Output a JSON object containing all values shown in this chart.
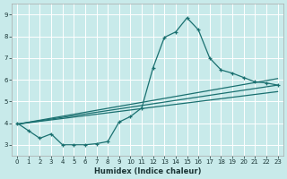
{
  "xlabel": "Humidex (Indice chaleur)",
  "xlim": [
    -0.5,
    23.5
  ],
  "ylim": [
    2.5,
    9.5
  ],
  "yticks": [
    3,
    4,
    5,
    6,
    7,
    8,
    9
  ],
  "xticks": [
    0,
    1,
    2,
    3,
    4,
    5,
    6,
    7,
    8,
    9,
    10,
    11,
    12,
    13,
    14,
    15,
    16,
    17,
    18,
    19,
    20,
    21,
    22,
    23
  ],
  "bg_color": "#c8eaea",
  "line_color": "#1a7070",
  "grid_color": "#ffffff",
  "main_x": [
    0,
    1,
    2,
    3,
    4,
    5,
    6,
    7,
    8,
    9,
    10,
    11,
    12,
    13,
    14,
    15,
    16,
    17,
    18,
    19,
    20,
    21,
    22,
    23
  ],
  "main_y": [
    4.0,
    3.65,
    3.3,
    3.5,
    3.0,
    3.0,
    3.0,
    3.05,
    3.15,
    4.05,
    4.3,
    4.7,
    6.55,
    7.95,
    8.2,
    8.85,
    8.3,
    7.0,
    6.45,
    6.3,
    6.1,
    5.9,
    5.85,
    5.75
  ],
  "trend1_x": [
    0,
    23
  ],
  "trend1_y": [
    3.95,
    6.05
  ],
  "trend2_x": [
    0,
    23
  ],
  "trend2_y": [
    3.95,
    5.75
  ],
  "trend3_x": [
    0,
    23
  ],
  "trend3_y": [
    3.95,
    5.45
  ]
}
